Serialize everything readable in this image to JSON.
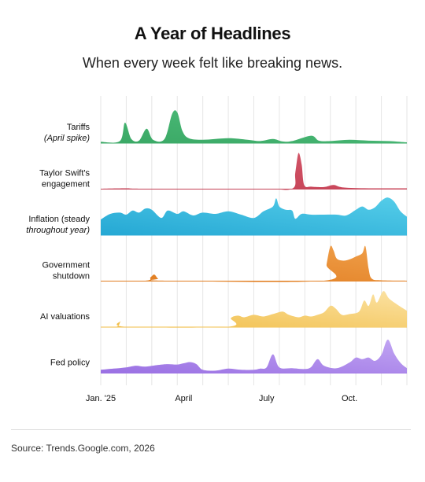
{
  "title": "A Year of Headlines",
  "subtitle": "When every week felt like breaking news.",
  "source": "Source: Trends.Google.com, 2026",
  "chart_data": {
    "type": "area",
    "layout": "ridgeline",
    "x_unit": "week of 2025",
    "x_ticks": [
      {
        "label": "Jan. '25",
        "week": 0
      },
      {
        "label": "April",
        "week": 13
      },
      {
        "label": "July",
        "week": 26
      },
      {
        "label": "Oct.",
        "week": 39
      }
    ],
    "xlim": [
      0,
      48
    ],
    "y_scale": "relative search interest (0-100)",
    "grid": "vertical",
    "series": [
      {
        "lines": [
          "Tariffs",
          "(April spike)"
        ],
        "italic": [
          false,
          true
        ],
        "color_top": "#4fbf7c",
        "color_bottom": "#3aa865",
        "points": [
          [
            0,
            3
          ],
          [
            3,
            5
          ],
          [
            3.8,
            50
          ],
          [
            4.8,
            10
          ],
          [
            6,
            6
          ],
          [
            7.2,
            35
          ],
          [
            8.2,
            8
          ],
          [
            10,
            10
          ],
          [
            11.2,
            72
          ],
          [
            12,
            75
          ],
          [
            12.8,
            30
          ],
          [
            13.8,
            12
          ],
          [
            16,
            8
          ],
          [
            20,
            12
          ],
          [
            23,
            8
          ],
          [
            25,
            5
          ],
          [
            27,
            10
          ],
          [
            28.5,
            4
          ],
          [
            30,
            5
          ],
          [
            33,
            18
          ],
          [
            34.2,
            6
          ],
          [
            36,
            5
          ],
          [
            39,
            8
          ],
          [
            42,
            6
          ],
          [
            45,
            5
          ],
          [
            48,
            2
          ]
        ]
      },
      {
        "lines": [
          "Taylor Swift's",
          "engagement"
        ],
        "italic": [
          false,
          false
        ],
        "color_top": "#d4586a",
        "color_bottom": "#c23d52",
        "points": [
          [
            0,
            1
          ],
          [
            4,
            2
          ],
          [
            7,
            1
          ],
          [
            25,
            1
          ],
          [
            30,
            1
          ],
          [
            30.5,
            40
          ],
          [
            31,
            88
          ],
          [
            31.5,
            60
          ],
          [
            31.9,
            10
          ],
          [
            33,
            6
          ],
          [
            35,
            5
          ],
          [
            36.5,
            10
          ],
          [
            38,
            4
          ],
          [
            42,
            2
          ],
          [
            48,
            2
          ]
        ]
      },
      {
        "lines": [
          "Inflation (steady",
          "throughout year)"
        ],
        "italic": [
          false,
          true
        ],
        "color_top": "#55cde9",
        "color_bottom": "#25a8d4",
        "points": [
          [
            0,
            38
          ],
          [
            1.5,
            52
          ],
          [
            3,
            55
          ],
          [
            4,
            50
          ],
          [
            5,
            60
          ],
          [
            6,
            55
          ],
          [
            7,
            65
          ],
          [
            8,
            62
          ],
          [
            9.5,
            42
          ],
          [
            10.5,
            60
          ],
          [
            12,
            52
          ],
          [
            13,
            58
          ],
          [
            14.5,
            48
          ],
          [
            16,
            55
          ],
          [
            18,
            52
          ],
          [
            20,
            58
          ],
          [
            22,
            50
          ],
          [
            24,
            42
          ],
          [
            25.5,
            58
          ],
          [
            27,
            70
          ],
          [
            27.5,
            90
          ],
          [
            28,
            70
          ],
          [
            29,
            62
          ],
          [
            30,
            60
          ],
          [
            30.5,
            40
          ],
          [
            31.5,
            52
          ],
          [
            33,
            50
          ],
          [
            35,
            50
          ],
          [
            37,
            50
          ],
          [
            38.5,
            48
          ],
          [
            40,
            62
          ],
          [
            41,
            70
          ],
          [
            42,
            62
          ],
          [
            43,
            68
          ],
          [
            44,
            84
          ],
          [
            45,
            92
          ],
          [
            46,
            82
          ],
          [
            47,
            58
          ],
          [
            48,
            45
          ]
        ]
      },
      {
        "lines": [
          "Government",
          "shutdown"
        ],
        "italic": [
          false,
          false
        ],
        "color_top": "#f0a04b",
        "color_bottom": "#e07b1e",
        "points": [
          [
            0,
            1
          ],
          [
            7,
            1
          ],
          [
            7.8,
            9
          ],
          [
            8.4,
            16
          ],
          [
            9,
            6
          ],
          [
            10,
            1
          ],
          [
            35,
            1
          ],
          [
            35.4,
            40
          ],
          [
            36,
            85
          ],
          [
            36.5,
            75
          ],
          [
            37,
            55
          ],
          [
            38,
            50
          ],
          [
            39,
            53
          ],
          [
            40,
            60
          ],
          [
            41,
            68
          ],
          [
            41.5,
            85
          ],
          [
            42,
            30
          ],
          [
            42.5,
            6
          ],
          [
            44,
            2
          ],
          [
            48,
            1
          ]
        ]
      },
      {
        "lines": [
          "AI valuations"
        ],
        "italic": [
          false
        ],
        "color_top": "#fbe2a3",
        "color_bottom": "#f1bd46",
        "points": [
          [
            0,
            1
          ],
          [
            2.5,
            1
          ],
          [
            3.2,
            15
          ],
          [
            3.9,
            1
          ],
          [
            20,
            1
          ],
          [
            20.4,
            22
          ],
          [
            21.5,
            28
          ],
          [
            22.5,
            24
          ],
          [
            24,
            30
          ],
          [
            25.5,
            26
          ],
          [
            27,
            32
          ],
          [
            28.5,
            38
          ],
          [
            29.5,
            30
          ],
          [
            31,
            24
          ],
          [
            32,
            28
          ],
          [
            33,
            26
          ],
          [
            34,
            30
          ],
          [
            35,
            36
          ],
          [
            36,
            52
          ],
          [
            36.8,
            46
          ],
          [
            37.8,
            30
          ],
          [
            39,
            32
          ],
          [
            40.5,
            38
          ],
          [
            41.3,
            65
          ],
          [
            42,
            52
          ],
          [
            42.7,
            80
          ],
          [
            43.3,
            60
          ],
          [
            44.3,
            88
          ],
          [
            45.2,
            70
          ],
          [
            46.5,
            55
          ],
          [
            48,
            40
          ]
        ]
      },
      {
        "lines": [
          "Fed policy"
        ],
        "italic": [
          false
        ],
        "color_top": "#c1a5f3",
        "color_bottom": "#9a70e3",
        "points": [
          [
            0,
            8
          ],
          [
            2,
            11
          ],
          [
            4,
            14
          ],
          [
            5.5,
            18
          ],
          [
            7,
            16
          ],
          [
            9,
            20
          ],
          [
            10.5,
            22
          ],
          [
            12,
            21
          ],
          [
            13,
            24
          ],
          [
            14,
            27
          ],
          [
            15,
            22
          ],
          [
            16,
            8
          ],
          [
            18,
            6
          ],
          [
            20,
            11
          ],
          [
            22,
            8
          ],
          [
            24,
            8
          ],
          [
            25,
            11
          ],
          [
            26,
            14
          ],
          [
            27,
            46
          ],
          [
            28,
            14
          ],
          [
            30,
            12
          ],
          [
            32,
            10
          ],
          [
            33,
            15
          ],
          [
            34,
            34
          ],
          [
            35,
            18
          ],
          [
            37,
            12
          ],
          [
            39,
            26
          ],
          [
            40,
            38
          ],
          [
            41,
            34
          ],
          [
            42,
            38
          ],
          [
            43,
            30
          ],
          [
            44,
            45
          ],
          [
            45,
            82
          ],
          [
            46,
            48
          ],
          [
            47,
            25
          ],
          [
            48,
            12
          ]
        ]
      }
    ]
  }
}
